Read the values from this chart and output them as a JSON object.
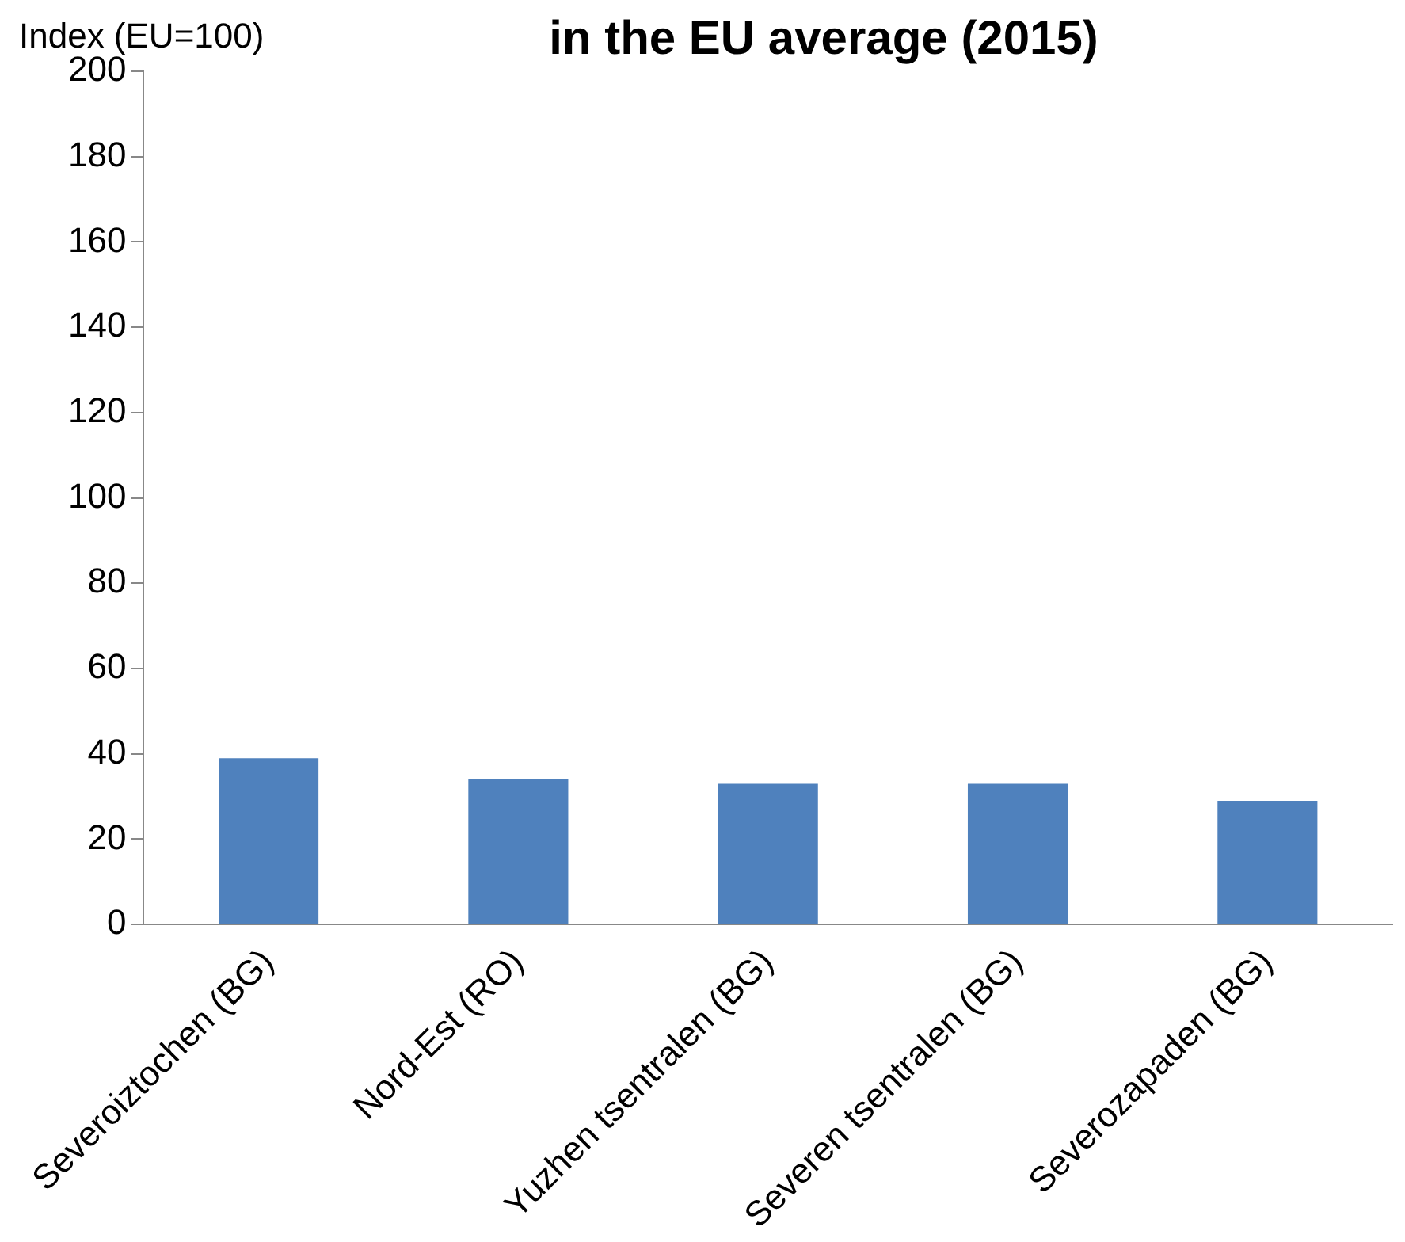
{
  "chart_data": {
    "type": "bar",
    "title": "in the EU average (2015)",
    "ylabel": "Index (EU=100)",
    "categories": [
      "Severoiztochen (BG)",
      "Nord-Est (RO)",
      "Yuzhen tsentralen (BG)",
      "Severen tsentralen (BG)",
      "Severozapaden (BG)"
    ],
    "values": [
      39,
      34,
      33,
      33,
      29
    ],
    "color": "#4f81bd",
    "ylim": [
      0,
      200
    ],
    "yticks": [
      0,
      20,
      40,
      60,
      80,
      100,
      120,
      140,
      160,
      180,
      200
    ],
    "grid": false,
    "legend": false
  }
}
